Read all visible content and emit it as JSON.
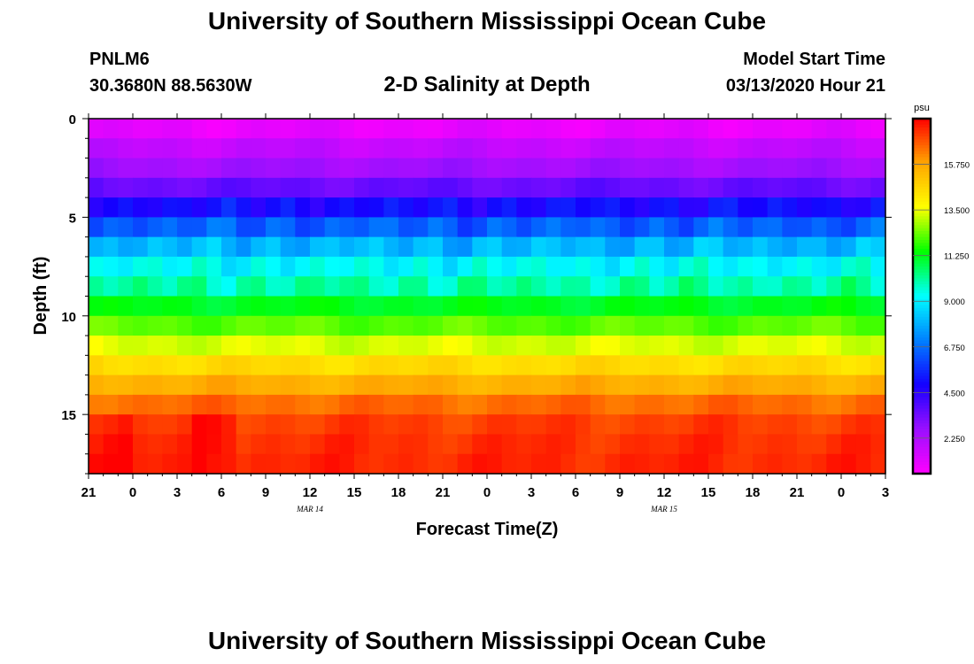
{
  "header": {
    "title": "University of Southern Mississippi Ocean Cube",
    "station_id": "PNLM6",
    "coordinates": "30.3680N 88.5630W",
    "plot_title": "2-D Salinity at Depth",
    "model_label": "Model Start Time",
    "model_time": "03/13/2020 Hour 21"
  },
  "footer": {
    "title": "University of Southern Mississippi Ocean Cube"
  },
  "chart_data": {
    "type": "heatmap",
    "title": "2-D Salinity at Depth",
    "xlabel": "Forecast Time(Z)",
    "ylabel": "Depth (ft)",
    "x_tick_labels": [
      "21",
      "0",
      "3",
      "6",
      "9",
      "12",
      "15",
      "18",
      "21",
      "0",
      "3",
      "6",
      "9",
      "12",
      "15",
      "18",
      "21",
      "0",
      "3"
    ],
    "x_date_labels": [
      {
        "label": "MAR 14",
        "at_hour": 15
      },
      {
        "label": "MAR 15",
        "at_hour": 39
      }
    ],
    "x_range_hours": [
      0,
      54
    ],
    "y_ticks": [
      0,
      5,
      10,
      15
    ],
    "y_range_ft": [
      0,
      18
    ],
    "colorbar": {
      "unit": "psu",
      "tick_labels": [
        "2.250",
        "4.500",
        "6.750",
        "9.000",
        "11.250",
        "13.500",
        "15.750"
      ],
      "tick_values": [
        2.25,
        4.5,
        6.75,
        9.0,
        11.25,
        13.5,
        15.75
      ],
      "range": [
        0.5,
        18.0
      ],
      "colors": [
        "#ff00ff",
        "#9a10ff",
        "#1400ff",
        "#0080ff",
        "#00ffff",
        "#00ff00",
        "#ffff00",
        "#ffa500",
        "#ff0000"
      ]
    },
    "depth_layers_ft": [
      0.5,
      1.5,
      2.5,
      3.5,
      4.5,
      5.5,
      6.5,
      7.5,
      8.5,
      9.5,
      10.5,
      11.5,
      12.5,
      13.5,
      14.5,
      15.5,
      16.5,
      17.5
    ],
    "layer_salinity_psu": [
      1.0,
      1.8,
      2.5,
      3.5,
      5.0,
      6.5,
      8.0,
      9.2,
      10.0,
      11.2,
      12.2,
      13.3,
      14.5,
      15.6,
      16.6,
      17.2,
      17.4,
      17.5
    ]
  }
}
